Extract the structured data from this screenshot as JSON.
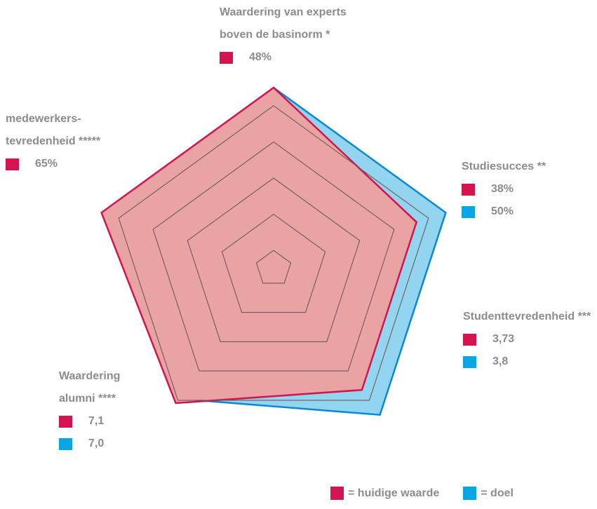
{
  "chart_data": {
    "type": "radar",
    "scale_max": 1.0,
    "rings": [
      0.1,
      0.3,
      0.5,
      0.7,
      0.9
    ],
    "series": [
      {
        "name": "huidige waarde",
        "color": "#d4144f",
        "fill": "#e9a3a3",
        "values": [
          1.0,
          0.83,
          0.83,
          0.92,
          1.0
        ]
      },
      {
        "name": "doel",
        "color": "#0a88d6",
        "fill": "#93d5f0",
        "values": [
          1.0,
          1.0,
          1.0,
          0.89,
          0.96
        ]
      }
    ],
    "axes": [
      {
        "label_lines": [
          "Waardering van experts",
          "boven de basinorm *"
        ],
        "current": "48%",
        "goal": null
      },
      {
        "label_lines": [
          "Studiesucces **"
        ],
        "current": "38%",
        "goal": "50%"
      },
      {
        "label_lines": [
          "Studenttevredenheid ***"
        ],
        "current": "3,73",
        "goal": "3,8"
      },
      {
        "label_lines": [
          "Waardering",
          "alumni ****"
        ],
        "current": "7,1",
        "goal": "7,0"
      },
      {
        "label_lines": [
          "medewerkers-",
          "tevredenheid *****"
        ],
        "current": "65%",
        "goal": null
      }
    ],
    "legend": [
      {
        "key": "current",
        "label": "= huidige waarde",
        "color": "#d4144f"
      },
      {
        "key": "goal",
        "label": "= doel",
        "color": "#0aa5e3"
      }
    ]
  }
}
